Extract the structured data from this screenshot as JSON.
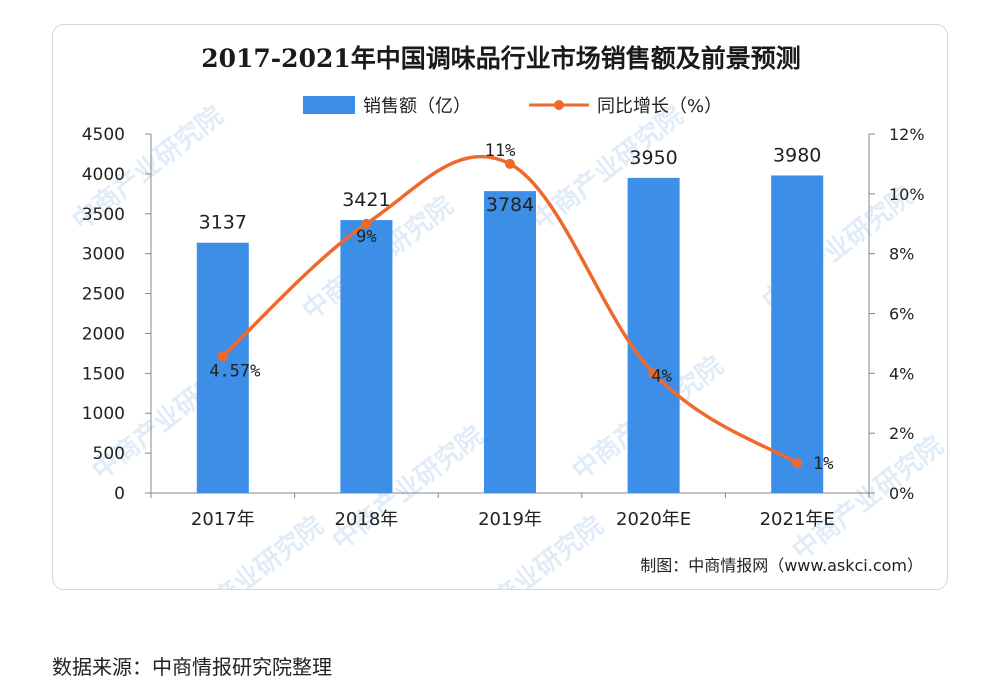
{
  "chart_data": {
    "type": "bar",
    "title": "2017-2021年中国调味品行业市场销售额及前景预测",
    "categories": [
      "2017年",
      "2018年",
      "2019年",
      "2020年E",
      "2021年E"
    ],
    "series": [
      {
        "name": "销售额（亿）",
        "type": "bar",
        "axis": "left",
        "values": [
          3137,
          3421,
          3784,
          3950,
          3980
        ],
        "labels": [
          "3137",
          "3421",
          "3784",
          "3950",
          "3980"
        ],
        "color": "#3d8ee6"
      },
      {
        "name": "同比增长（%）",
        "type": "line",
        "axis": "right",
        "values": [
          4.57,
          9,
          11,
          4,
          1
        ],
        "labels": [
          "4.57%",
          "9%",
          "11%",
          "4%",
          "1%"
        ],
        "color": "#ee6a2c"
      }
    ],
    "y_left": {
      "min": 0,
      "max": 4500,
      "ticks": [
        "0",
        "500",
        "1000",
        "1500",
        "2000",
        "2500",
        "3000",
        "3500",
        "4000",
        "4500"
      ]
    },
    "y_right": {
      "min": 0,
      "max": 12,
      "ticks": [
        "0%",
        "2%",
        "4%",
        "6%",
        "8%",
        "10%",
        "12%"
      ]
    },
    "legend_position": "top-center",
    "grid": false,
    "credit": "制图：中商情报网（www.askci.com）",
    "watermark": "中商产业研究院"
  },
  "source_note": "数据来源：中商情报研究院整理"
}
